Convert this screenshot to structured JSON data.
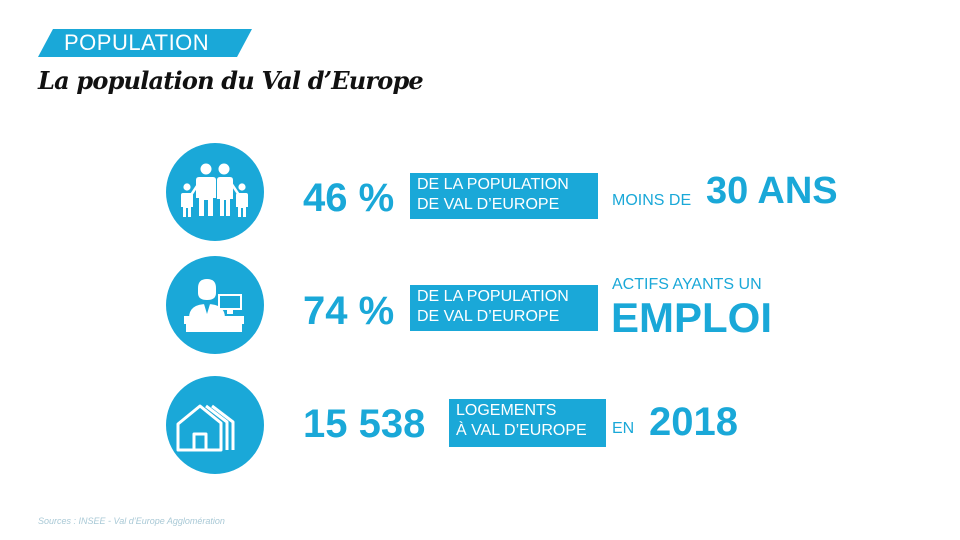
{
  "header": {
    "tag": "POPULATION",
    "title": "La population du Val d’Europe"
  },
  "stats": [
    {
      "icon": "family-icon",
      "value": "46 %",
      "box_line1": "DE LA POPULATION",
      "box_line2": "DE VAL D’EUROPE",
      "suffix_small": "MOINS DE",
      "suffix_big": "30 ANS"
    },
    {
      "icon": "office-worker-icon",
      "value": "74 %",
      "box_line1": "DE LA POPULATION",
      "box_line2": "DE VAL D’EUROPE",
      "suffix_small": "ACTIFS AYANTS UN",
      "suffix_big": "EMPLOI"
    },
    {
      "icon": "houses-icon",
      "value": "15 538",
      "box_line1": "LOGEMENTS",
      "box_line2": "À VAL D’EUROPE",
      "suffix_small": "EN",
      "suffix_big": "2018"
    }
  ],
  "footer": {
    "source": "Sources : INSEE - Val d’Europe Agglomération"
  },
  "colors": {
    "accent": "#1aa8d8",
    "title": "#111111",
    "source": "#a9c9d6"
  }
}
